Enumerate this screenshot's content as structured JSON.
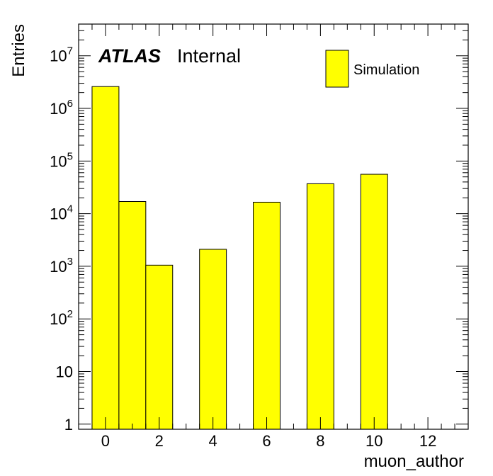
{
  "chart_data": {
    "type": "bar",
    "title": "",
    "experiment_label": "ATLAS",
    "status_label": "Internal",
    "xlabel": "muon_author",
    "ylabel": "Entries",
    "x_ticks": [
      "0",
      "2",
      "4",
      "6",
      "8",
      "10",
      "12"
    ],
    "xlim": [
      -1,
      13.5
    ],
    "y_scale": "log",
    "ylim": [
      0.8,
      40000000
    ],
    "y_tick_labels": [
      {
        "value": 1,
        "base": "1",
        "exp": ""
      },
      {
        "value": 10,
        "base": "10",
        "exp": ""
      },
      {
        "value": 100,
        "base": "10",
        "exp": "2"
      },
      {
        "value": 1000,
        "base": "10",
        "exp": "3"
      },
      {
        "value": 10000,
        "base": "10",
        "exp": "4"
      },
      {
        "value": 100000,
        "base": "10",
        "exp": "5"
      },
      {
        "value": 1000000,
        "base": "10",
        "exp": "6"
      },
      {
        "value": 10000000,
        "base": "10",
        "exp": "7"
      }
    ],
    "bin_width": 1,
    "series": [
      {
        "name": "Simulation",
        "color": "#ffff00",
        "bins": [
          {
            "center": 0,
            "value": 2600000
          },
          {
            "center": 1,
            "value": 17000
          },
          {
            "center": 2,
            "value": 1050
          },
          {
            "center": 4,
            "value": 2100
          },
          {
            "center": 6,
            "value": 16500
          },
          {
            "center": 8,
            "value": 37000
          },
          {
            "center": 10,
            "value": 56000
          }
        ]
      }
    ],
    "legend": {
      "placement": "top-right",
      "entries": [
        "Simulation"
      ]
    },
    "grid": false
  }
}
